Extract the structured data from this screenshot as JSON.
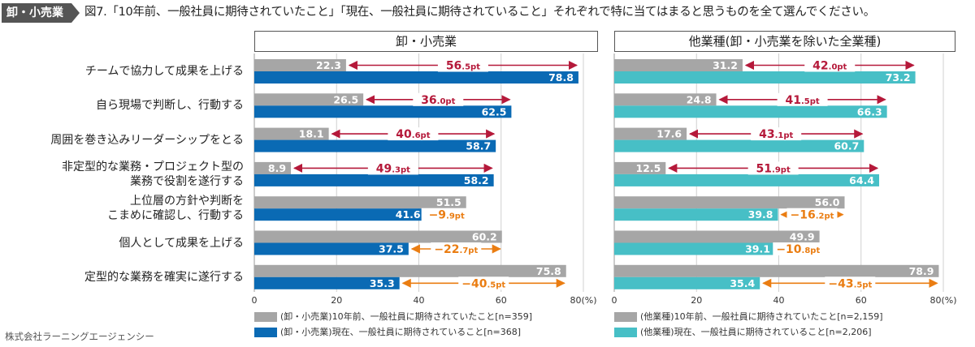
{
  "tag": "卸・小売業",
  "figure_title": "図7.「10年前、一般社員に期待されていたこと」「現在、一般社員に期待されていること」それぞれで特に当てはまると思うものを全て選んでください。",
  "source": "株式会社ラーニングエージェンシー",
  "colors": {
    "tag_bg": "#555555",
    "past": "#a6a6a6",
    "left_now": "#0a6ab4",
    "right_now": "#47bfc6",
    "diff_pos": "#b5193a",
    "diff_neg": "#ea7d12",
    "grid": "#d0d0d0"
  },
  "chart_data": [
    {
      "type": "bar",
      "orientation": "horizontal",
      "title": "卸・小売業",
      "categories": [
        "チームで協力して成果を上げる",
        "自ら現場で判断し、行動する",
        "周囲を巻き込みリーダーシップをとる",
        "非定型的な業務・プロジェクト型の業務で役割を遂行する",
        "上位層の方針や判断をこまめに確認し、行動する",
        "個人として成果を上げる",
        "定型的な業務を確実に遂行する"
      ],
      "category_lines": [
        [
          "チームで協力して成果を上げる"
        ],
        [
          "自ら現場で判断し、行動する"
        ],
        [
          "周囲を巻き込みリーダーシップをとる"
        ],
        [
          "非定型的な業務・プロジェクト型の",
          "業務で役割を遂行する"
        ],
        [
          "上位層の方針や判断を",
          "こまめに確認し、行動する"
        ],
        [
          "個人として成果を上げる"
        ],
        [
          "定型的な業務を確実に遂行する"
        ]
      ],
      "series": [
        {
          "name": "(卸・小売業)10年前、一般社員に期待されていたこと[n=359]",
          "values": [
            22.3,
            26.5,
            18.1,
            8.9,
            51.5,
            60.2,
            75.8
          ]
        },
        {
          "name": "(卸・小売業)現在、一般社員に期待されていること[n=368]",
          "values": [
            78.8,
            62.5,
            58.7,
            58.2,
            41.6,
            37.5,
            35.3
          ]
        }
      ],
      "differences": [
        {
          "main": "56",
          "dec": ".5pt"
        },
        {
          "main": "36",
          "dec": ".0pt"
        },
        {
          "main": "40",
          "dec": ".6pt"
        },
        {
          "main": "49",
          "dec": ".3pt"
        },
        {
          "main": "−9",
          "dec": ".9pt"
        },
        {
          "main": "−22",
          "dec": ".7pt"
        },
        {
          "main": "−40",
          "dec": ".5pt"
        }
      ],
      "xlim": [
        0,
        80
      ],
      "xticks": [
        "0",
        "20",
        "40",
        "60",
        "80(%)"
      ]
    },
    {
      "type": "bar",
      "orientation": "horizontal",
      "title": "他業種(卸・小売業を除いた全業種)",
      "categories": [
        "チームで協力して成果を上げる",
        "自ら現場で判断し、行動する",
        "周囲を巻き込みリーダーシップをとる",
        "非定型的な業務・プロジェクト型の業務で役割を遂行する",
        "上位層の方針や判断をこまめに確認し、行動する",
        "個人として成果を上げる",
        "定型的な業務を確実に遂行する"
      ],
      "series": [
        {
          "name": "(他業種)10年前、一般社員に期待されていたこと[n=2,159]",
          "values": [
            31.2,
            24.8,
            17.6,
            12.5,
            56.0,
            49.9,
            78.9
          ]
        },
        {
          "name": "(他業種)現在、一般社員に期待されていること[n=2,206]",
          "values": [
            73.2,
            66.3,
            60.7,
            64.4,
            39.8,
            39.1,
            35.4
          ]
        }
      ],
      "differences": [
        {
          "main": "42",
          "dec": ".0pt"
        },
        {
          "main": "41",
          "dec": ".5pt"
        },
        {
          "main": "43",
          "dec": ".1pt"
        },
        {
          "main": "51",
          "dec": ".9pt"
        },
        {
          "main": "−16",
          "dec": ".2pt"
        },
        {
          "main": "−10",
          "dec": ".8pt"
        },
        {
          "main": "−43",
          "dec": ".5pt"
        }
      ],
      "xlim": [
        0,
        80
      ],
      "xticks": [
        "0",
        "20",
        "40",
        "60",
        "80(%)"
      ]
    }
  ]
}
